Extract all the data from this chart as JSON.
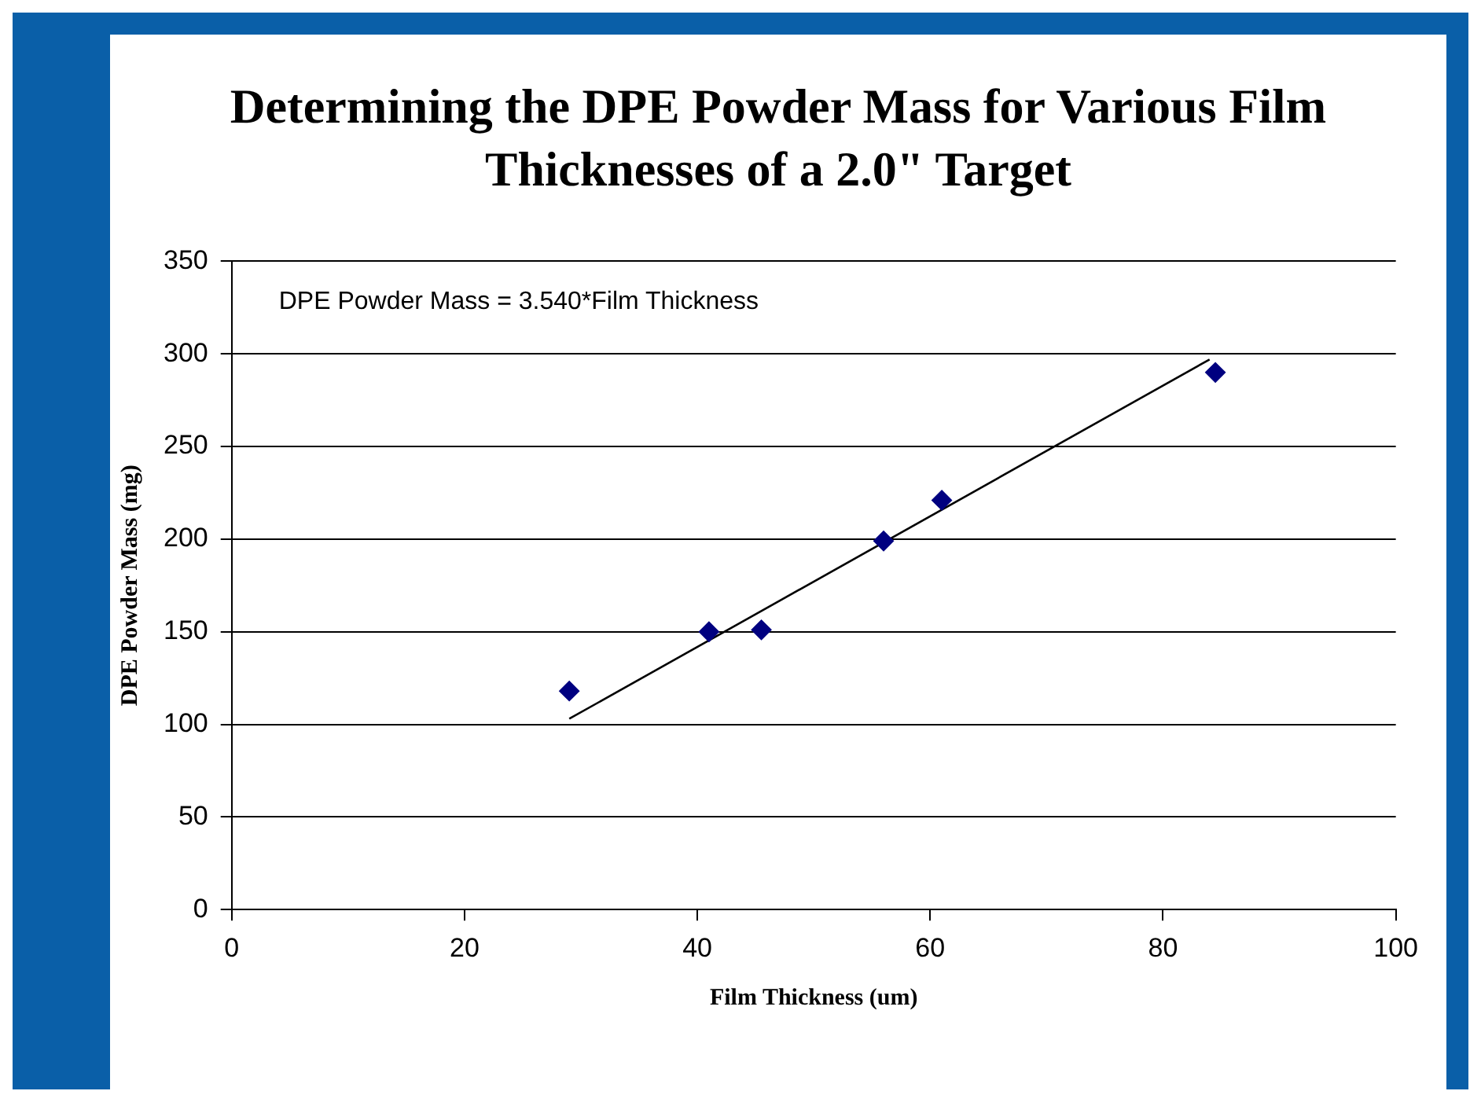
{
  "chart_data": {
    "type": "scatter",
    "title": "Determining the DPE Powder Mass for Various Film Thicknesses of a 2.0\" Target",
    "xlabel": "Film Thickness (um)",
    "ylabel": "DPE Powder Mass (mg)",
    "annotations": [
      "DPE Powder Mass = 3.540*Film Thickness"
    ],
    "series": [
      {
        "type": "scatter",
        "marker": "diamond",
        "color": "#000080",
        "x": [
          29,
          41,
          45.5,
          56,
          61,
          84.5
        ],
        "values": [
          118,
          150,
          151,
          199,
          221,
          290
        ]
      },
      {
        "type": "line",
        "marker": "none",
        "color": "#000000",
        "x": [
          29,
          84
        ],
        "values": [
          103,
          297
        ]
      }
    ],
    "xlim": [
      0,
      100
    ],
    "xticks": [
      0,
      20,
      40,
      60,
      80,
      100
    ],
    "ylim": [
      0,
      350
    ],
    "yticks": [
      0,
      50,
      100,
      150,
      200,
      250,
      300,
      350
    ],
    "grid": "y",
    "line_style": "solid"
  }
}
